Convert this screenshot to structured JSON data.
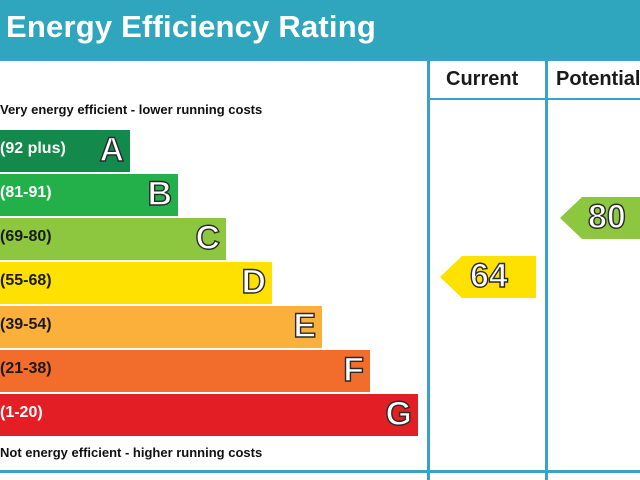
{
  "title": "Energy Efficiency Rating",
  "columns": {
    "current": "Current",
    "potential": "Potential"
  },
  "notes": {
    "top": "Very energy efficient - lower running costs",
    "bottom": "Not energy efficient - higher running costs"
  },
  "chart_data": {
    "type": "bar",
    "title": "Energy Efficiency Rating",
    "categories": [
      "A",
      "B",
      "C",
      "D",
      "E",
      "F",
      "G"
    ],
    "bands": [
      {
        "letter": "A",
        "range": "(92 plus)",
        "color": "#138a4b",
        "range_color": "#ffffff"
      },
      {
        "letter": "B",
        "range": "(81-91)",
        "color": "#23b04b",
        "range_color": "#ffffff"
      },
      {
        "letter": "C",
        "range": "(69-80)",
        "color": "#8dc63f",
        "range_color": "#1a1a1a"
      },
      {
        "letter": "D",
        "range": "(55-68)",
        "color": "#ffe100",
        "range_color": "#1a1a1a"
      },
      {
        "letter": "E",
        "range": "(39-54)",
        "color": "#fbb03b",
        "range_color": "#1a1a1a"
      },
      {
        "letter": "F",
        "range": "(21-38)",
        "color": "#f26c2b",
        "range_color": "#1a1a1a"
      },
      {
        "letter": "G",
        "range": "(1-20)",
        "color": "#e31e24",
        "range_color": "#ffffff"
      }
    ],
    "ratings": {
      "current": {
        "value": 64,
        "label": "64",
        "band": "D",
        "color": "#ffe100"
      },
      "potential": {
        "value": 80,
        "label": "80",
        "band": "C",
        "color": "#8dc63f"
      }
    },
    "frame_color": "#3aa2c2"
  }
}
